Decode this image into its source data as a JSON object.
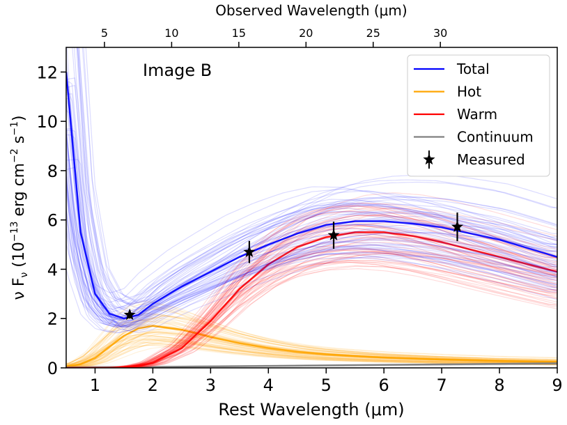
{
  "chart_data": {
    "type": "line",
    "annotation": "Image B",
    "xlabel": "Rest Wavelength (μm)",
    "ylabel": "ν F",
    "ylabel_sub": "ν",
    "ylabel_units_open": " (10",
    "ylabel_exp1": "−13",
    "ylabel_units_mid": " erg cm",
    "ylabel_exp2": "−2",
    "ylabel_units_s": " s",
    "ylabel_exp3": "−1",
    "ylabel_units_close": ")",
    "top_xlabel": "Observed Wavelength (μm)",
    "xlim": [
      0.5,
      9.0
    ],
    "ylim": [
      0,
      13
    ],
    "xticks": [
      1,
      2,
      3,
      4,
      5,
      6,
      7,
      8,
      9
    ],
    "yticks": [
      0,
      2,
      4,
      6,
      8,
      10,
      12
    ],
    "top_xticks": [
      5,
      10,
      15,
      20,
      25,
      30
    ],
    "top_axis_scale": 4.3,
    "grid": false,
    "legend_position": "top-right",
    "legend": [
      {
        "label": "Total",
        "color": "#0000ff",
        "marker": "line"
      },
      {
        "label": "Hot",
        "color": "#ffa500",
        "marker": "line"
      },
      {
        "label": "Warm",
        "color": "#ff0000",
        "marker": "line"
      },
      {
        "label": "Continuum",
        "color": "#808080",
        "marker": "line"
      },
      {
        "label": "Measured",
        "color": "#000000",
        "marker": "star"
      }
    ],
    "series": [
      {
        "name": "Total",
        "color": "#0000ff",
        "x": [
          0.5,
          0.75,
          1.0,
          1.25,
          1.5,
          1.75,
          2.0,
          2.5,
          3.0,
          3.5,
          4.0,
          4.5,
          5.0,
          5.5,
          6.0,
          6.5,
          7.0,
          7.5,
          8.0,
          8.5,
          9.0
        ],
        "y": [
          12.0,
          5.5,
          3.0,
          2.2,
          2.0,
          2.15,
          2.6,
          3.3,
          3.9,
          4.5,
          5.0,
          5.45,
          5.8,
          5.95,
          5.95,
          5.85,
          5.7,
          5.45,
          5.2,
          4.85,
          4.5
        ]
      },
      {
        "name": "Hot",
        "color": "#ffa500",
        "x": [
          0.5,
          0.75,
          1.0,
          1.25,
          1.5,
          1.75,
          2.0,
          2.5,
          3.0,
          3.5,
          4.0,
          4.5,
          5.0,
          5.5,
          6.0,
          6.5,
          7.0,
          7.5,
          8.0,
          8.5,
          9.0
        ],
        "y": [
          0.05,
          0.15,
          0.4,
          0.85,
          1.3,
          1.6,
          1.7,
          1.55,
          1.25,
          1.0,
          0.8,
          0.65,
          0.55,
          0.48,
          0.42,
          0.38,
          0.34,
          0.31,
          0.28,
          0.26,
          0.24
        ]
      },
      {
        "name": "Warm",
        "color": "#ff0000",
        "x": [
          0.5,
          0.75,
          1.0,
          1.25,
          1.5,
          1.75,
          2.0,
          2.5,
          3.0,
          3.5,
          4.0,
          4.5,
          5.0,
          5.5,
          6.0,
          6.5,
          7.0,
          7.5,
          8.0,
          8.5,
          9.0
        ],
        "y": [
          0.0,
          0.0,
          0.0,
          0.0,
          0.02,
          0.08,
          0.2,
          0.8,
          1.9,
          3.2,
          4.2,
          4.9,
          5.3,
          5.5,
          5.5,
          5.35,
          5.1,
          4.8,
          4.5,
          4.2,
          3.9
        ]
      },
      {
        "name": "Continuum",
        "color": "#808080",
        "x": [
          0.5,
          1.0,
          2.0,
          3.0,
          4.0,
          5.0,
          6.0,
          7.0,
          8.0,
          9.0
        ],
        "y": [
          0.02,
          0.03,
          0.04,
          0.06,
          0.08,
          0.1,
          0.12,
          0.14,
          0.16,
          0.18
        ]
      }
    ],
    "measured": {
      "name": "Measured",
      "x": [
        1.6,
        3.67,
        5.13,
        7.27
      ],
      "y": [
        2.15,
        4.7,
        5.38,
        5.72
      ],
      "yerr": [
        0.15,
        0.45,
        0.55,
        0.58
      ]
    }
  }
}
